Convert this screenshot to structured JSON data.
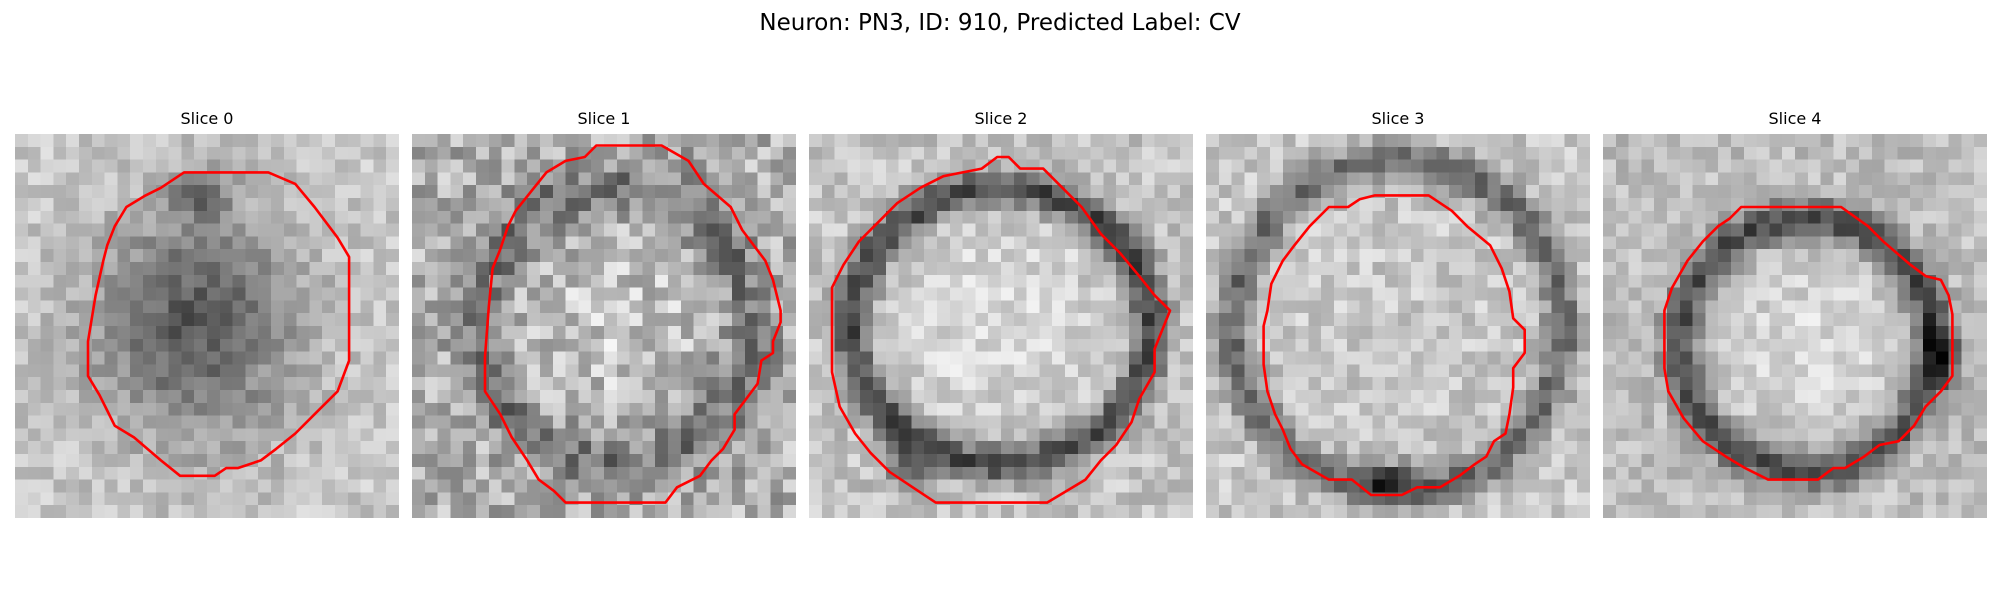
{
  "figure": {
    "title": "Neuron: PN3, ID: 910, Predicted Label: CV"
  },
  "contour_color": "#ff0000",
  "colormap": "grayscale",
  "slices": [
    {
      "title": "Slice 0",
      "image_style": "dark cell body in upper center"
    },
    {
      "title": "Slice 1",
      "image_style": "noisy ring with gray interior"
    },
    {
      "title": "Slice 2",
      "image_style": "dark ring with bright interior"
    },
    {
      "title": "Slice 3",
      "image_style": "large ring, contour inside"
    },
    {
      "title": "Slice 4",
      "image_style": "dark ring with bright center"
    }
  ]
}
